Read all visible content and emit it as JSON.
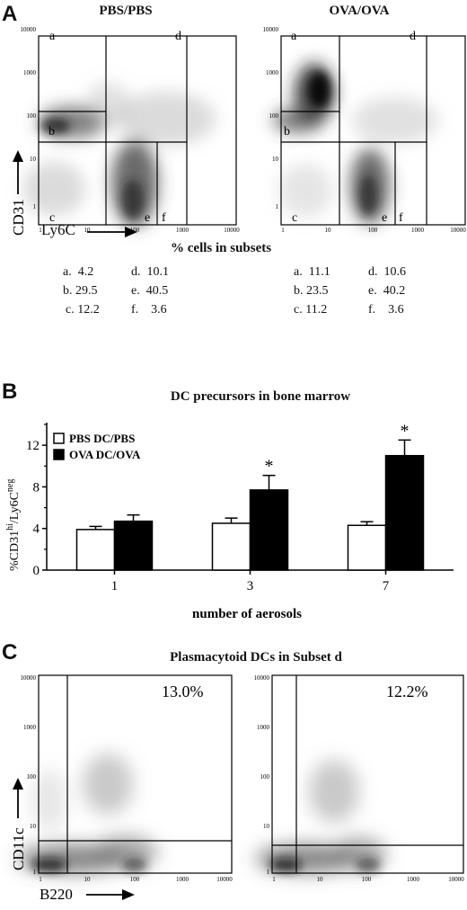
{
  "panel_a": {
    "letter": "A",
    "axis_x": "Ly6C",
    "axis_y": "CD31",
    "subsets_title": "% cells in subsets",
    "plots": [
      {
        "title": "PBS/PBS",
        "gate_labels": [
          "a",
          "b",
          "c",
          "d",
          "e",
          "f"
        ]
      },
      {
        "title": "OVA/OVA",
        "gate_labels": [
          "a",
          "b",
          "c",
          "d",
          "e",
          "f"
        ]
      }
    ],
    "subsets": [
      {
        "col1": [
          "a.  4.2",
          "b. 29.5",
          "c. 12.2"
        ],
        "col2": [
          "d.  10.1",
          "e.  40.5",
          "f.    3.6"
        ]
      },
      {
        "col1": [
          "a.  11.1",
          "b. 23.5",
          "c. 11.2"
        ],
        "col2": [
          "d.  10.6",
          "e.  40.2",
          "f.    3.6"
        ]
      }
    ]
  },
  "panel_b": {
    "letter": "B"
  },
  "panel_c": {
    "letter": "C",
    "title": "Plasmacytoid DCs in Subset d",
    "axis_x": "B220",
    "axis_y": "CD11c",
    "plots": [
      {
        "percent": "13.0%"
      },
      {
        "percent": "12.2%"
      }
    ]
  },
  "flow_ticks": [
    "1",
    "10",
    "100",
    "1000",
    "10000"
  ],
  "chart_data": [
    {
      "type": "heatmap",
      "title": "PBS/PBS",
      "xlabel": "Ly6C",
      "ylabel": "CD31",
      "x_scale": "log",
      "y_scale": "log",
      "xlim": [
        1,
        10000
      ],
      "ylim": [
        1,
        10000
      ]
    },
    {
      "type": "heatmap",
      "title": "OVA/OVA",
      "xlabel": "Ly6C",
      "ylabel": "CD31",
      "x_scale": "log",
      "y_scale": "log",
      "xlim": [
        1,
        10000
      ],
      "ylim": [
        1,
        10000
      ]
    },
    {
      "type": "bar",
      "title": "DC precursors in bone marrow",
      "xlabel": "number of aerosols",
      "ylabel": "%CD31hi/Ly6Cneg",
      "ylabel_parts": [
        "%CD31",
        "hi",
        "/Ly6C",
        "neg"
      ],
      "categories": [
        "1",
        "3",
        "7"
      ],
      "ylim": [
        0,
        14
      ],
      "yticks": [
        "0",
        "4",
        "8",
        "12"
      ],
      "legend_position": "top-left",
      "series": [
        {
          "name": "PBS DC/PBS",
          "values": [
            3.9,
            4.5,
            4.3
          ],
          "errors": [
            0.3,
            0.5,
            0.35
          ],
          "color": "#ffffff"
        },
        {
          "name": "OVA DC/OVA",
          "values": [
            4.7,
            7.7,
            11.0
          ],
          "errors": [
            0.6,
            1.4,
            1.5
          ],
          "color": "#000000"
        }
      ],
      "significance": [
        "",
        "*",
        "*"
      ]
    },
    {
      "type": "heatmap",
      "title": "Plasmacytoid DCs in Subset d",
      "xlabel": "B220",
      "ylabel": "CD11c",
      "x_scale": "log",
      "y_scale": "log",
      "xlim": [
        1,
        10000
      ],
      "ylim": [
        1,
        10000
      ],
      "annotation": "13.0%"
    },
    {
      "type": "heatmap",
      "xlabel": "B220",
      "ylabel": "CD11c",
      "x_scale": "log",
      "y_scale": "log",
      "xlim": [
        1,
        10000
      ],
      "ylim": [
        1,
        10000
      ],
      "annotation": "12.2%"
    }
  ]
}
